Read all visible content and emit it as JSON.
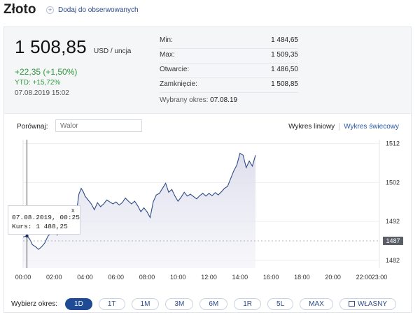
{
  "header": {
    "title": "Złoto",
    "watch_label": "Dodaj do obserwowanych"
  },
  "quote": {
    "price": "1 508,85",
    "unit": "USD / uncja",
    "change": "+22,35 (+1,50%)",
    "ytd": "YTD: +15,72%",
    "datetime": "07.08.2019 15:02"
  },
  "stats": [
    {
      "label": "Min:",
      "value": "1 484,65"
    },
    {
      "label": "Max:",
      "value": "1 509,35"
    },
    {
      "label": "Otwarcie:",
      "value": "1 486,50"
    },
    {
      "label": "Zamknięcie:",
      "value": "1 508,85"
    }
  ],
  "period_info": {
    "label": "Wybrany okres:",
    "value": "07.08.19"
  },
  "compare": {
    "label": "Porównaj:",
    "placeholder": "Walor"
  },
  "chart_types": {
    "line": "Wykres liniowy",
    "candle": "Wykres świecowy"
  },
  "tooltip": {
    "close": "x",
    "date_line": "07.08.2019, 00:25",
    "value_line": "Kurs: 1 488,25"
  },
  "period_selector": {
    "label": "Wybierz okres:",
    "options": [
      "1D",
      "1T",
      "1M",
      "3M",
      "6M",
      "1R",
      "5L",
      "MAX"
    ],
    "custom": "WŁASNY",
    "active": "1D"
  },
  "colors": {
    "line": "#2e4a86",
    "area": "#e8e9f3",
    "up": "#2f9a3c",
    "active_button": "#1e4b93"
  },
  "chart_data": {
    "type": "area",
    "x_ticks": [
      "00:00",
      "02:00",
      "04:00",
      "06:00",
      "08:00",
      "10:00",
      "12:00",
      "14:00",
      "16:00",
      "18:00",
      "20:00",
      "22:00",
      "23:00"
    ],
    "y_ticks": [
      1482,
      1492,
      1502,
      1512
    ],
    "ylim": [
      1480,
      1513
    ],
    "xlim": [
      0,
      23
    ],
    "reference_label": "1487",
    "reference_value": 1487,
    "series": [
      {
        "x": [
          0,
          0.25,
          0.42,
          0.6,
          0.8,
          1.0,
          1.2,
          1.4,
          1.6,
          1.8,
          2.0,
          2.2,
          2.4,
          2.6,
          2.8,
          3.0,
          3.2,
          3.4,
          3.5,
          3.6,
          3.75,
          3.9,
          4.0,
          4.2,
          4.4,
          4.6,
          4.8,
          5.0,
          5.2,
          5.4,
          5.6,
          5.8,
          6.0,
          6.2,
          6.4,
          6.6,
          6.8,
          7.0,
          7.2,
          7.4,
          7.6,
          7.8,
          8.0,
          8.2,
          8.4,
          8.6,
          8.8,
          9.0,
          9.2,
          9.4,
          9.6,
          9.8,
          10.0,
          10.2,
          10.4,
          10.6,
          10.8,
          11.0,
          11.2,
          11.4,
          11.6,
          11.8,
          12.0,
          12.2,
          12.4,
          12.6,
          12.8,
          13.0,
          13.2,
          13.4,
          13.6,
          13.8,
          14.0,
          14.2,
          14.4,
          14.6,
          14.8,
          15.0
        ],
        "y": [
          1488.0,
          1488.25,
          1487.5,
          1486.0,
          1485.5,
          1484.8,
          1485.5,
          1486.5,
          1488.2,
          1489.0,
          1490.0,
          1488.5,
          1489.5,
          1491.0,
          1492.5,
          1491.5,
          1493.0,
          1494.0,
          1496.0,
          1499.0,
          1500.5,
          1499.5,
          1498.5,
          1497.5,
          1496.5,
          1495.0,
          1496.8,
          1495.8,
          1496.5,
          1497.5,
          1497.0,
          1496.5,
          1497.0,
          1496.2,
          1496.8,
          1498.0,
          1497.2,
          1496.5,
          1497.2,
          1496.0,
          1494.5,
          1495.5,
          1494.5,
          1493.0,
          1497.0,
          1498.8,
          1499.2,
          1500.5,
          1501.8,
          1499.5,
          1500.2,
          1498.5,
          1497.2,
          1498.2,
          1499.5,
          1498.5,
          1499.0,
          1498.4,
          1497.8,
          1498.6,
          1499.2,
          1498.5,
          1499.2,
          1498.6,
          1499.4,
          1498.8,
          1499.6,
          1500.5,
          1501.0,
          1503.0,
          1505.0,
          1506.5,
          1509.5,
          1509.0,
          1505.8,
          1507.5,
          1506.2,
          1509.0
        ]
      }
    ]
  }
}
